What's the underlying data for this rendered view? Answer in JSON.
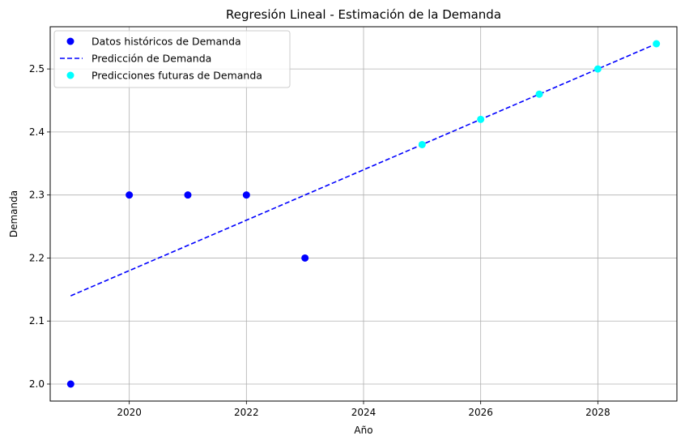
{
  "chart_data": {
    "type": "scatter",
    "title": "Regresión Lineal - Estimación de la Demanda",
    "xlabel": "Año",
    "ylabel": "Demanda",
    "xlim": [
      2018.65,
      2029.35
    ],
    "ylim": [
      1.973,
      2.567
    ],
    "xticks": [
      2020,
      2022,
      2024,
      2026,
      2028
    ],
    "yticks": [
      2.0,
      2.1,
      2.2,
      2.3,
      2.4,
      2.5
    ],
    "grid": true,
    "legend_position": "top-left",
    "series": [
      {
        "name": "Datos históricos de Demanda",
        "kind": "scatter",
        "color": "#0000ff",
        "x": [
          2019,
          2020,
          2021,
          2022,
          2023
        ],
        "y": [
          2.0,
          2.3,
          2.3,
          2.3,
          2.2
        ]
      },
      {
        "name": "Predicción de Demanda",
        "kind": "line",
        "style": "dashed",
        "color": "#0000ff",
        "x": [
          2019,
          2020,
          2021,
          2022,
          2023,
          2024,
          2025,
          2026,
          2027,
          2028,
          2029
        ],
        "y": [
          2.14,
          2.18,
          2.22,
          2.26,
          2.3,
          2.34,
          2.38,
          2.42,
          2.46,
          2.5,
          2.54
        ]
      },
      {
        "name": "Predicciones futuras de Demanda",
        "kind": "scatter",
        "color": "#00ffff",
        "x": [
          2025,
          2026,
          2027,
          2028,
          2029
        ],
        "y": [
          2.38,
          2.42,
          2.46,
          2.5,
          2.54
        ]
      }
    ]
  }
}
